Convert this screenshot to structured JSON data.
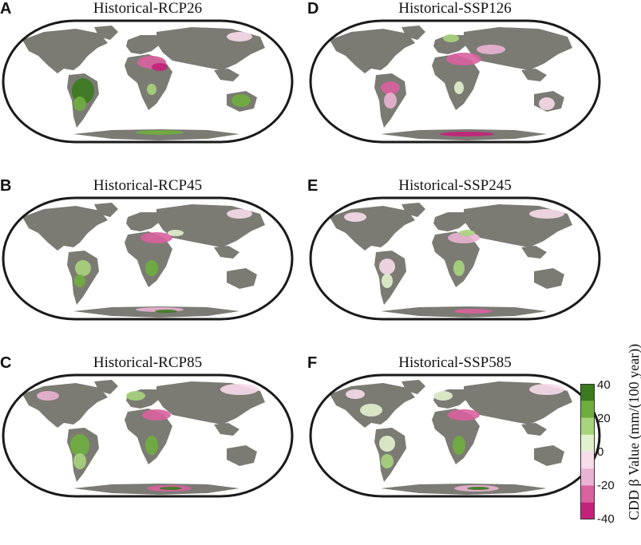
{
  "panels": [
    {
      "letter": "A",
      "title": "Historical-RCP26"
    },
    {
      "letter": "B",
      "title": "Historical-RCP45"
    },
    {
      "letter": "C",
      "title": "Historical-RCP85"
    },
    {
      "letter": "D",
      "title": "Historical-SSP126"
    },
    {
      "letter": "E",
      "title": "Historical-SSP245"
    },
    {
      "letter": "F",
      "title": "Historical-SSP585"
    }
  ],
  "colorbar": {
    "label": "CDD β Value (mm/(100 year))",
    "ticks": [
      "40",
      "20",
      "0",
      "-20",
      "-40"
    ],
    "colors": [
      "#3b7a1e",
      "#6fae3e",
      "#a8d47c",
      "#e2f2cf",
      "#f7dcea",
      "#eab3d3",
      "#d9619e",
      "#c4217b"
    ]
  },
  "colors": {
    "land_neutral": "#7b7b74",
    "frame": "#1a1a1a"
  }
}
